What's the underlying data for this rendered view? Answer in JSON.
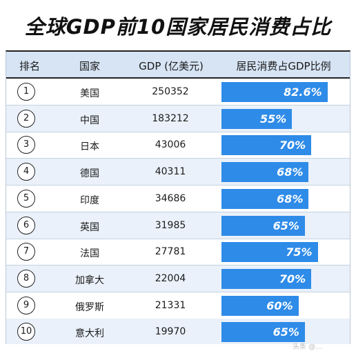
{
  "title": "全球GDP前10国家居民消费占比",
  "headers": {
    "rank": "排名",
    "country": "国家",
    "gdp": "GDP (亿美元)",
    "share": "居民消费占GDP比例"
  },
  "watermark": "头条 @...",
  "chart_data": {
    "type": "table",
    "title": "全球GDP前10国家居民消费占比",
    "columns": [
      "排名",
      "国家",
      "GDP (亿美元)",
      "居民消费占GDP比例"
    ],
    "rows": [
      {
        "rank": "1",
        "country": "美国",
        "gdp": "250352",
        "share": 82.6,
        "share_label": "82.6%"
      },
      {
        "rank": "2",
        "country": "中国",
        "gdp": "183212",
        "share": 55,
        "share_label": "55%"
      },
      {
        "rank": "3",
        "country": "日本",
        "gdp": "43006",
        "share": 70,
        "share_label": "70%"
      },
      {
        "rank": "4",
        "country": "德国",
        "gdp": "40311",
        "share": 68,
        "share_label": "68%"
      },
      {
        "rank": "5",
        "country": "印度",
        "gdp": "34686",
        "share": 68,
        "share_label": "68%"
      },
      {
        "rank": "6",
        "country": "英国",
        "gdp": "31985",
        "share": 65,
        "share_label": "65%"
      },
      {
        "rank": "7",
        "country": "法国",
        "gdp": "27781",
        "share": 75,
        "share_label": "75%"
      },
      {
        "rank": "8",
        "country": "加拿大",
        "gdp": "22004",
        "share": 70,
        "share_label": "70%"
      },
      {
        "rank": "9",
        "country": "俄罗斯",
        "gdp": "21331",
        "share": 60,
        "share_label": "60%"
      },
      {
        "rank": "10",
        "country": "意大利",
        "gdp": "19970",
        "share": 65,
        "share_label": "65%"
      }
    ],
    "bar_color": "#2e8be8"
  }
}
